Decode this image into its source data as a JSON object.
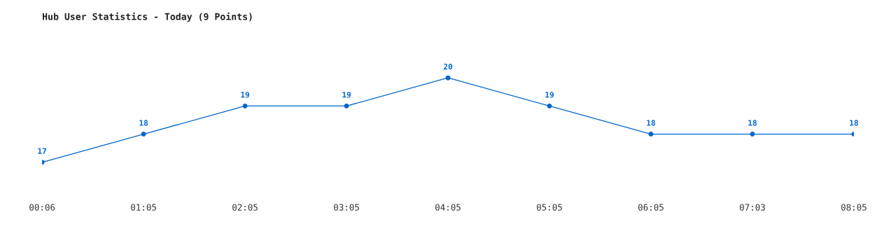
{
  "chart_data": {
    "type": "line",
    "title": "Hub User Statistics - Today (9 Points)",
    "categories": [
      "00:06",
      "01:05",
      "02:05",
      "03:05",
      "04:05",
      "05:05",
      "06:05",
      "07:03",
      "08:05"
    ],
    "series": [
      {
        "color": "#0066cc",
        "values": [
          17,
          18,
          19,
          19,
          20,
          19,
          18,
          18,
          18
        ]
      }
    ],
    "data_labels": true,
    "marker": "circle",
    "line_style": "solid",
    "grid": false,
    "tick_labels": "x"
  }
}
